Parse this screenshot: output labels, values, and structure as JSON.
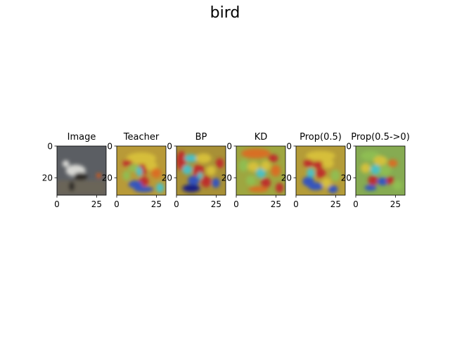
{
  "figure": {
    "title": "bird"
  },
  "chart_data": [
    {
      "type": "heatmap",
      "title": "Image",
      "xticks": [
        "0",
        "25"
      ],
      "yticks": [
        "0",
        "20"
      ],
      "xlim": [
        0,
        31
      ],
      "ylim": [
        31,
        0
      ],
      "grid": false,
      "image_kind": "photo",
      "palette": {
        "background": "#5b5e63",
        "subject_light": "#d8d8d4",
        "subject_dark": "#2d2a28",
        "ground": "#6a6558",
        "accent": "#d15a1a"
      }
    },
    {
      "type": "heatmap",
      "title": "Teacher",
      "xticks": [
        "0",
        "25"
      ],
      "yticks": [
        "0",
        "20"
      ],
      "xlim": [
        0,
        31
      ],
      "ylim": [
        31,
        0
      ],
      "grid": false,
      "image_kind": "saliency_overlay",
      "colormap": "jet"
    },
    {
      "type": "heatmap",
      "title": "BP",
      "xticks": [
        "0",
        "25"
      ],
      "yticks": [
        "0",
        "20"
      ],
      "xlim": [
        0,
        31
      ],
      "ylim": [
        31,
        0
      ],
      "grid": false,
      "image_kind": "saliency_overlay",
      "colormap": "jet"
    },
    {
      "type": "heatmap",
      "title": "KD",
      "xticks": [
        "0",
        "25"
      ],
      "yticks": [
        "0",
        "20"
      ],
      "xlim": [
        0,
        31
      ],
      "ylim": [
        31,
        0
      ],
      "grid": false,
      "image_kind": "saliency_overlay",
      "colormap": "jet"
    },
    {
      "type": "heatmap",
      "title": "Prop(0.5)",
      "xticks": [
        "0",
        "25"
      ],
      "yticks": [
        "0",
        "20"
      ],
      "xlim": [
        0,
        31
      ],
      "ylim": [
        31,
        0
      ],
      "grid": false,
      "image_kind": "saliency_overlay",
      "colormap": "jet"
    },
    {
      "type": "heatmap",
      "title": "Prop(0.5->0)",
      "xticks": [
        "0",
        "25"
      ],
      "yticks": [
        "0",
        "20"
      ],
      "xlim": [
        0,
        31
      ],
      "ylim": [
        31,
        0
      ],
      "grid": false,
      "image_kind": "saliency_overlay",
      "colormap": "jet"
    }
  ]
}
